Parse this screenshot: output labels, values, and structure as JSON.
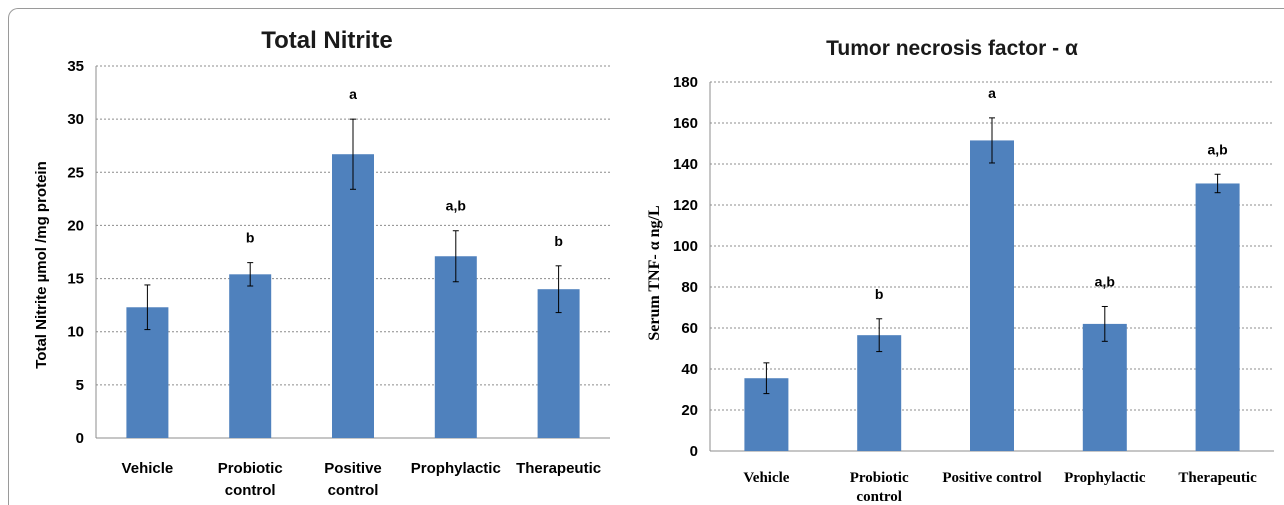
{
  "chart_data": [
    {
      "type": "bar",
      "title": "Total Nitrite",
      "xlabel": "",
      "ylabel": "Total Nitrite µmol /mg protein",
      "categories": [
        [
          "Vehicle"
        ],
        [
          "Probiotic",
          "control"
        ],
        [
          "Positive",
          "control"
        ],
        [
          "Prophylactic"
        ],
        [
          "Therapeutic"
        ]
      ],
      "values": [
        12.3,
        15.4,
        26.7,
        17.1,
        14.0
      ],
      "errors": [
        2.1,
        1.1,
        3.3,
        2.4,
        2.2
      ],
      "annotations": [
        "",
        "b",
        "a",
        "a,b",
        "b"
      ],
      "ylim": [
        0,
        35
      ],
      "yticks": [
        0,
        5,
        10,
        15,
        20,
        25,
        30,
        35
      ],
      "grid": true,
      "bar_color": "#4f81bd"
    },
    {
      "type": "bar",
      "title": "Tumor necrosis factor - α",
      "xlabel": "",
      "ylabel": "Serum TNF- α ng/L",
      "categories": [
        [
          "Vehicle"
        ],
        [
          "Probiotic",
          "control"
        ],
        [
          "Positive control"
        ],
        [
          "Prophylactic"
        ],
        [
          "Therapeutic"
        ]
      ],
      "values": [
        35.5,
        56.5,
        151.5,
        62.0,
        130.5
      ],
      "errors": [
        7.5,
        8.0,
        11.0,
        8.5,
        4.5
      ],
      "annotations": [
        "",
        "b",
        "a",
        "a,b",
        "a,b"
      ],
      "ylim": [
        0,
        180
      ],
      "yticks": [
        0,
        20,
        40,
        60,
        80,
        100,
        120,
        140,
        160,
        180
      ],
      "grid": true,
      "bar_color": "#4f81bd"
    }
  ]
}
